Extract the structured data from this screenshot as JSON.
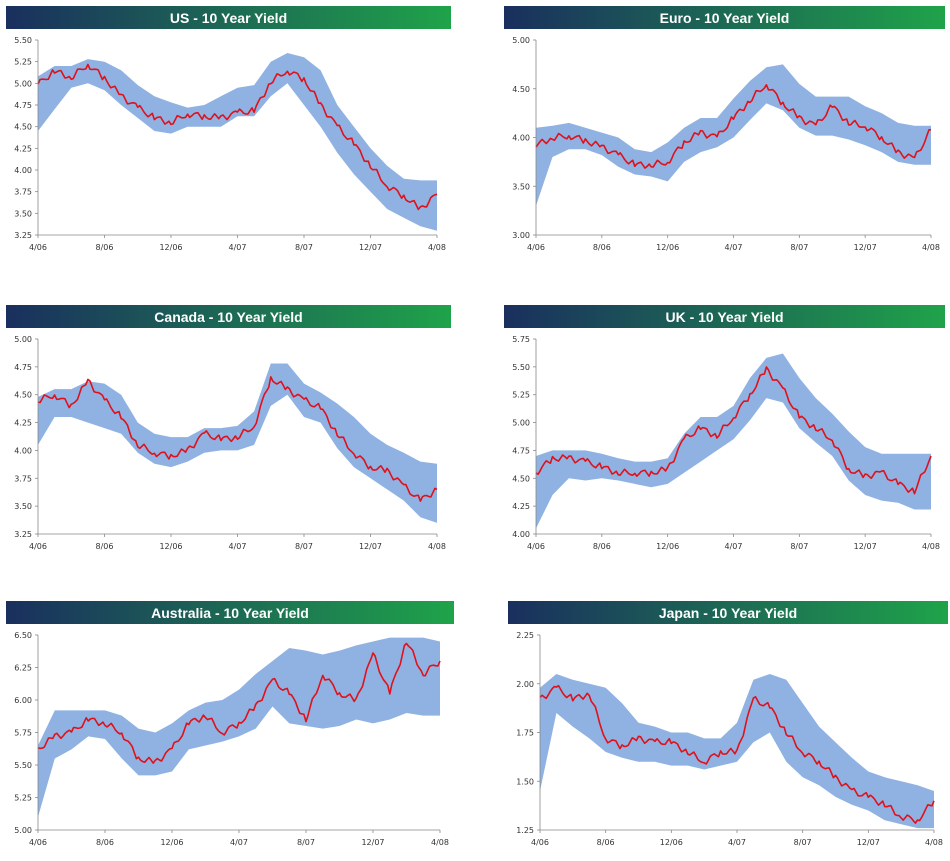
{
  "colors": {
    "title_bar_start": "#1a2f5e",
    "title_bar_end": "#1fa34a",
    "band": "#8fb2e3",
    "yield_line": "#e0111b",
    "axis": "#888888"
  },
  "chart_data": [
    {
      "type": "area",
      "title": "US - 10 Year Yield",
      "ylim": [
        3.25,
        5.5
      ],
      "yticks": [
        "5.50",
        "5.25",
        "5.00",
        "4.75",
        "4.50",
        "4.25",
        "4.00",
        "3.75",
        "3.50",
        "3.25"
      ],
      "xticks": [
        "4/06",
        "8/06",
        "12/06",
        "4/07",
        "8/07",
        "12/07",
        "4/08"
      ],
      "grid": false,
      "x": [
        0,
        0.5,
        1,
        1.5,
        2,
        2.5,
        3,
        3.5,
        4,
        4.5,
        5,
        5.5,
        6,
        6.5,
        7,
        7.5,
        8,
        8.5,
        9,
        9.5,
        10,
        10.5,
        11,
        11.5,
        12
      ],
      "yield": [
        4.99,
        5.14,
        5.07,
        5.22,
        5.06,
        4.85,
        4.72,
        4.6,
        4.55,
        4.65,
        4.62,
        4.6,
        4.66,
        4.68,
        5.02,
        5.15,
        5.05,
        4.75,
        4.5,
        4.3,
        4.05,
        3.82,
        3.7,
        3.55,
        3.72
      ],
      "band_high": [
        5.08,
        5.2,
        5.2,
        5.28,
        5.25,
        5.15,
        4.98,
        4.85,
        4.78,
        4.72,
        4.75,
        4.85,
        4.95,
        4.98,
        5.25,
        5.35,
        5.3,
        5.15,
        4.75,
        4.5,
        4.25,
        4.05,
        3.9,
        3.88,
        3.88
      ],
      "band_low": [
        4.45,
        4.7,
        4.95,
        5.0,
        4.92,
        4.75,
        4.6,
        4.45,
        4.42,
        4.5,
        4.5,
        4.5,
        4.62,
        4.62,
        4.85,
        5.0,
        4.75,
        4.5,
        4.2,
        3.95,
        3.75,
        3.55,
        3.45,
        3.35,
        3.3
      ]
    },
    {
      "type": "area",
      "title": "Euro - 10 Year Yield",
      "ylim": [
        3.0,
        5.0
      ],
      "yticks": [
        "5.00",
        "4.50",
        "4.00",
        "3.50",
        "3.00"
      ],
      "xticks": [
        "4/06",
        "8/06",
        "12/06",
        "4/07",
        "8/07",
        "12/07",
        "4/08"
      ],
      "grid": false,
      "x": [
        0,
        0.5,
        1,
        1.5,
        2,
        2.5,
        3,
        3.5,
        4,
        4.5,
        5,
        5.5,
        6,
        6.5,
        7,
        7.5,
        8,
        8.5,
        9,
        9.5,
        10,
        10.5,
        11,
        11.5,
        12
      ],
      "yield": [
        3.92,
        4.0,
        4.02,
        3.97,
        3.9,
        3.82,
        3.72,
        3.72,
        3.75,
        3.95,
        4.05,
        4.0,
        4.2,
        4.38,
        4.55,
        4.35,
        4.2,
        4.12,
        4.32,
        4.15,
        4.12,
        4.0,
        3.85,
        3.78,
        4.08
      ],
      "band_high": [
        4.1,
        4.12,
        4.15,
        4.1,
        4.05,
        4.0,
        3.88,
        3.85,
        3.95,
        4.1,
        4.2,
        4.2,
        4.4,
        4.58,
        4.72,
        4.75,
        4.55,
        4.42,
        4.42,
        4.42,
        4.32,
        4.25,
        4.15,
        4.12,
        4.12
      ],
      "band_low": [
        3.3,
        3.8,
        3.88,
        3.88,
        3.82,
        3.7,
        3.62,
        3.6,
        3.55,
        3.75,
        3.85,
        3.9,
        4.0,
        4.18,
        4.35,
        4.28,
        4.1,
        4.02,
        4.02,
        3.98,
        3.92,
        3.85,
        3.75,
        3.72,
        3.72
      ]
    },
    {
      "type": "area",
      "title": "Canada - 10 Year Yield",
      "ylim": [
        3.25,
        5.0
      ],
      "yticks": [
        "5.00",
        "4.75",
        "4.50",
        "4.25",
        "4.00",
        "3.75",
        "3.50",
        "3.25"
      ],
      "xticks": [
        "4/06",
        "8/06",
        "12/06",
        "4/07",
        "8/07",
        "12/07",
        "4/08"
      ],
      "grid": false,
      "x": [
        0,
        0.5,
        1,
        1.5,
        2,
        2.5,
        3,
        3.5,
        4,
        4.5,
        5,
        5.5,
        6,
        6.5,
        7,
        7.5,
        8,
        8.5,
        9,
        9.5,
        10,
        10.5,
        11,
        11.5,
        12
      ],
      "yield": [
        4.45,
        4.5,
        4.4,
        4.62,
        4.45,
        4.3,
        4.05,
        3.98,
        3.95,
        4.0,
        4.15,
        4.1,
        4.12,
        4.22,
        4.65,
        4.55,
        4.45,
        4.38,
        4.15,
        3.98,
        3.85,
        3.82,
        3.68,
        3.55,
        3.65
      ],
      "band_high": [
        4.48,
        4.55,
        4.55,
        4.62,
        4.6,
        4.5,
        4.25,
        4.15,
        4.12,
        4.12,
        4.2,
        4.2,
        4.22,
        4.35,
        4.78,
        4.78,
        4.6,
        4.52,
        4.42,
        4.3,
        4.15,
        4.05,
        3.98,
        3.9,
        3.88
      ],
      "band_low": [
        4.05,
        4.3,
        4.3,
        4.25,
        4.2,
        4.15,
        3.98,
        3.88,
        3.85,
        3.9,
        3.98,
        4.0,
        4.0,
        4.05,
        4.4,
        4.5,
        4.3,
        4.25,
        4.02,
        3.85,
        3.75,
        3.65,
        3.55,
        3.4,
        3.35
      ]
    },
    {
      "type": "area",
      "title": "UK - 10 Year Yield",
      "ylim": [
        4.0,
        5.75
      ],
      "yticks": [
        "5.75",
        "5.50",
        "5.25",
        "5.00",
        "4.75",
        "4.50",
        "4.25",
        "4.00"
      ],
      "xticks": [
        "4/06",
        "8/06",
        "12/06",
        "4/07",
        "8/07",
        "12/07",
        "4/08"
      ],
      "grid": false,
      "x": [
        0,
        0.5,
        1,
        1.5,
        2,
        2.5,
        3,
        3.5,
        4,
        4.5,
        5,
        5.5,
        6,
        6.5,
        7,
        7.5,
        8,
        8.5,
        9,
        9.5,
        10,
        10.5,
        11,
        11.5,
        12
      ],
      "yield": [
        4.55,
        4.68,
        4.68,
        4.65,
        4.6,
        4.55,
        4.55,
        4.55,
        4.58,
        4.85,
        4.95,
        4.88,
        5.05,
        5.25,
        5.48,
        5.3,
        5.05,
        4.95,
        4.85,
        4.58,
        4.52,
        4.55,
        4.45,
        4.38,
        4.7
      ],
      "band_high": [
        4.7,
        4.75,
        4.75,
        4.75,
        4.72,
        4.68,
        4.65,
        4.65,
        4.68,
        4.9,
        5.05,
        5.05,
        5.15,
        5.4,
        5.58,
        5.62,
        5.4,
        5.22,
        5.08,
        4.92,
        4.78,
        4.72,
        4.72,
        4.72,
        4.72
      ],
      "band_low": [
        4.05,
        4.35,
        4.5,
        4.48,
        4.5,
        4.48,
        4.45,
        4.42,
        4.45,
        4.55,
        4.65,
        4.75,
        4.85,
        5.02,
        5.22,
        5.18,
        4.95,
        4.82,
        4.7,
        4.48,
        4.35,
        4.3,
        4.28,
        4.22,
        4.22
      ]
    },
    {
      "type": "area",
      "title": "Australia - 10 Year Yield",
      "ylim": [
        5.0,
        6.5
      ],
      "yticks": [
        "6.50",
        "6.25",
        "6.00",
        "5.75",
        "5.50",
        "5.25",
        "5.00"
      ],
      "xticks": [
        "4/06",
        "8/06",
        "12/06",
        "4/07",
        "8/07",
        "12/07",
        "4/08"
      ],
      "grid": false,
      "x": [
        0,
        0.5,
        1,
        1.5,
        2,
        2.5,
        3,
        3.5,
        4,
        4.5,
        5,
        5.5,
        6,
        6.5,
        7,
        7.5,
        8,
        8.5,
        9,
        9.5,
        10,
        10.5,
        11,
        11.5,
        12
      ],
      "yield": [
        5.62,
        5.72,
        5.75,
        5.85,
        5.82,
        5.75,
        5.55,
        5.52,
        5.62,
        5.82,
        5.88,
        5.75,
        5.82,
        5.95,
        6.15,
        6.05,
        5.85,
        6.2,
        6.05,
        6.0,
        6.35,
        6.05,
        6.45,
        6.2,
        6.3
      ],
      "band_high": [
        5.65,
        5.92,
        5.92,
        5.92,
        5.92,
        5.88,
        5.78,
        5.75,
        5.82,
        5.92,
        5.98,
        6.0,
        6.08,
        6.2,
        6.3,
        6.4,
        6.38,
        6.35,
        6.38,
        6.42,
        6.45,
        6.48,
        6.48,
        6.48,
        6.45
      ],
      "band_low": [
        5.1,
        5.55,
        5.62,
        5.72,
        5.7,
        5.55,
        5.42,
        5.42,
        5.45,
        5.62,
        5.65,
        5.68,
        5.72,
        5.78,
        5.95,
        5.82,
        5.8,
        5.78,
        5.8,
        5.85,
        5.82,
        5.85,
        5.9,
        5.88,
        5.88
      ]
    },
    {
      "type": "area",
      "title": "Japan - 10 Year Yield",
      "ylim": [
        1.25,
        2.25
      ],
      "yticks": [
        "2.25",
        "2.00",
        "1.75",
        "1.50",
        "1.25"
      ],
      "xticks": [
        "4/06",
        "8/06",
        "12/06",
        "4/07",
        "8/07",
        "12/07",
        "4/08"
      ],
      "grid": false,
      "x": [
        0,
        0.5,
        1,
        1.5,
        2,
        2.5,
        3,
        3.5,
        4,
        4.5,
        5,
        5.5,
        6,
        6.5,
        7,
        7.5,
        8,
        8.5,
        9,
        9.5,
        10,
        10.5,
        11,
        11.5,
        12
      ],
      "yield": [
        1.92,
        1.98,
        1.92,
        1.95,
        1.72,
        1.68,
        1.72,
        1.7,
        1.7,
        1.65,
        1.6,
        1.65,
        1.65,
        1.92,
        1.88,
        1.75,
        1.65,
        1.6,
        1.52,
        1.45,
        1.42,
        1.38,
        1.32,
        1.3,
        1.4
      ],
      "band_high": [
        1.98,
        2.05,
        2.02,
        2.0,
        1.98,
        1.9,
        1.8,
        1.78,
        1.75,
        1.75,
        1.72,
        1.72,
        1.8,
        2.02,
        2.05,
        2.02,
        1.9,
        1.78,
        1.7,
        1.62,
        1.55,
        1.52,
        1.5,
        1.48,
        1.45
      ],
      "band_low": [
        1.45,
        1.85,
        1.78,
        1.72,
        1.65,
        1.62,
        1.6,
        1.6,
        1.58,
        1.58,
        1.56,
        1.58,
        1.6,
        1.7,
        1.75,
        1.6,
        1.52,
        1.48,
        1.42,
        1.38,
        1.35,
        1.3,
        1.28,
        1.26,
        1.26
      ]
    }
  ]
}
